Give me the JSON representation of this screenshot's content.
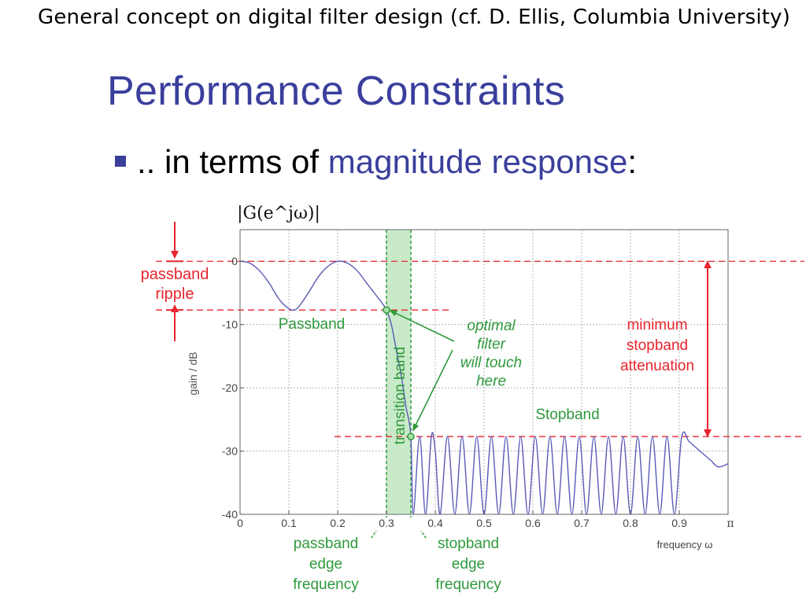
{
  "caption": "General concept on digital filter design (cf. D. Ellis, Columbia University)",
  "slide": {
    "title": "Performance Constraints",
    "bullet_prefix": ".. in terms of ",
    "bullet_highlight": "magnitude response",
    "bullet_suffix": ":"
  },
  "colors": {
    "title_blue": "#3a3f9c",
    "red": "#e8242c",
    "green": "#2f9a3c",
    "curve": "#5a5ab8"
  },
  "chart_data": {
    "type": "line",
    "title": "|G(e^jω)|",
    "xlabel": "frequency ω",
    "ylabel": "gain / dB",
    "xlim": [
      0,
      1
    ],
    "ylim": [
      -40,
      5
    ],
    "x_ticks": [
      0,
      0.1,
      0.2,
      0.3,
      0.4,
      0.5,
      0.6,
      0.7,
      0.8,
      0.9
    ],
    "x_tick_labels": [
      "0",
      "0.1",
      "0.2",
      "0.3",
      "0.4",
      "0.5",
      "0.6",
      "0.7",
      "0.8",
      "0.9"
    ],
    "x_end_label": "π",
    "y_ticks": [
      0,
      -10,
      -20,
      -30,
      -40
    ],
    "y_tick_labels": [
      "0",
      "-10",
      "-20",
      "-30",
      "-40"
    ],
    "grid": true,
    "passband": {
      "start": 0,
      "end": 0.3,
      "ripple_db": -7.7
    },
    "stopband": {
      "start": 0.35,
      "end": 1,
      "attenuation_db": -27.7
    },
    "transition_band": [
      0.3,
      0.35
    ],
    "series": [
      {
        "x": [
          0,
          0.02,
          0.04,
          0.06,
          0.08,
          0.1,
          0.11,
          0.12,
          0.14,
          0.16,
          0.18,
          0.2,
          0.22,
          0.24,
          0.26,
          0.28,
          0.29,
          0.3,
          0.31,
          0.32,
          0.33,
          0.34,
          0.35,
          0.355,
          0.368,
          0.38,
          0.392,
          0.4,
          0.41,
          0.425,
          0.44,
          0.455,
          0.47,
          0.485,
          0.5,
          0.515,
          0.53,
          0.545,
          0.56,
          0.575,
          0.59,
          0.605,
          0.62,
          0.635,
          0.65,
          0.665,
          0.68,
          0.695,
          0.71,
          0.725,
          0.74,
          0.755,
          0.77,
          0.785,
          0.8,
          0.815,
          0.83,
          0.845,
          0.86,
          0.875,
          0.89,
          0.905,
          0.92,
          0.935,
          0.95,
          0.965,
          0.98,
          1.0
        ],
        "y": [
          0,
          -0.3,
          -1.5,
          -3.5,
          -6,
          -7.5,
          -7.7,
          -7.2,
          -5,
          -2.5,
          -0.8,
          0,
          -0.3,
          -1.5,
          -3.5,
          -5.5,
          -6.5,
          -7.7,
          -10,
          -14,
          -18,
          -23,
          -27.7,
          -40,
          -27.7,
          -40,
          -27.7,
          -30,
          -40,
          -27.7,
          -40,
          -27.7,
          -40,
          -27.7,
          -40,
          -27.7,
          -40,
          -27.7,
          -40,
          -27.7,
          -40,
          -27.7,
          -40,
          -27.7,
          -40,
          -27.7,
          -40,
          -27.7,
          -40,
          -27.7,
          -40,
          -27.7,
          -40,
          -27.7,
          -40,
          -27.7,
          -40,
          -27.7,
          -40,
          -27.7,
          -40,
          -27.7,
          -28.5,
          -29.5,
          -30.5,
          -31.5,
          -32.5,
          -32
        ]
      }
    ],
    "annotations": {
      "y_axis_title": "|G(e^jω)|",
      "passband_ripple": [
        "passband",
        "ripple"
      ],
      "passband_label": "Passband",
      "transition_band": "transition band",
      "optimal": [
        "optimal",
        "filter",
        "will touch",
        "here"
      ],
      "stopband_label": "Stopband",
      "min_stopband": [
        "minimum",
        "stopband",
        "attenuation"
      ],
      "passband_edge": [
        "passband",
        "edge",
        "frequency"
      ],
      "stopband_edge": [
        "stopband",
        "edge",
        "frequency"
      ]
    }
  }
}
